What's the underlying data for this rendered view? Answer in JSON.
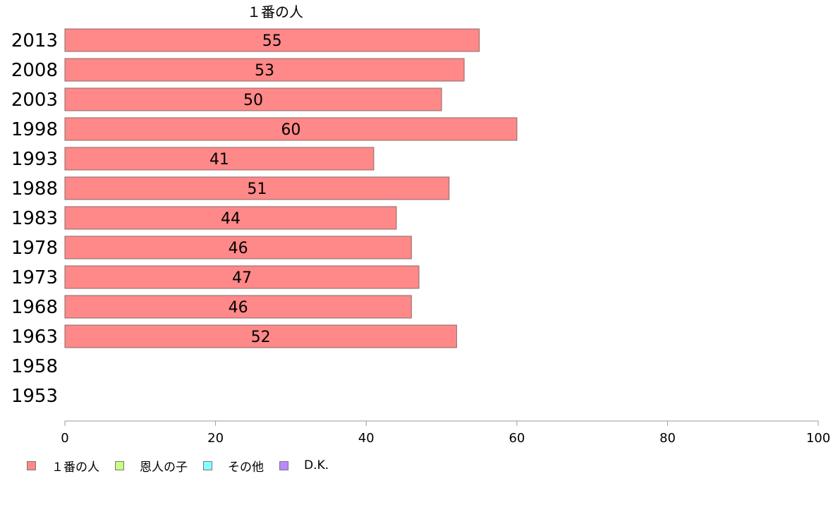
{
  "chart_data": {
    "type": "bar",
    "orientation": "horizontal",
    "series_title": "１番の人",
    "categories": [
      "2013",
      "2008",
      "2003",
      "1998",
      "1993",
      "1988",
      "1983",
      "1978",
      "1973",
      "1968",
      "1963",
      "1958",
      "1953"
    ],
    "series": [
      {
        "name": "１番の人",
        "color": "#ff8888",
        "values": [
          55,
          53,
          50,
          60,
          41,
          51,
          44,
          46,
          47,
          46,
          52,
          null,
          null
        ]
      }
    ],
    "xlim": [
      0,
      100
    ],
    "xticks": [
      0,
      20,
      40,
      60,
      80,
      100
    ],
    "legend": [
      {
        "label": "１番の人",
        "color": "#ff8888"
      },
      {
        "label": "恩人の子",
        "color": "#c8ff80"
      },
      {
        "label": "その他",
        "color": "#88ffff"
      },
      {
        "label": "D.K.",
        "color": "#bb88ff"
      }
    ],
    "legend_position": "bottom-left",
    "grid": false
  }
}
